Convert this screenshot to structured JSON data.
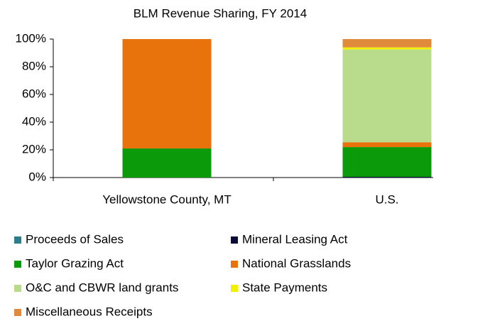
{
  "chart_data": {
    "type": "stacked_bar",
    "title": "BLM Revenue Sharing, FY 2014",
    "categories": [
      "Yellowstone County, MT",
      "U.S."
    ],
    "series": [
      {
        "name": "Proceeds of Sales",
        "color": "#2e7d8c",
        "values": [
          0,
          0
        ]
      },
      {
        "name": "Mineral Leasing Act",
        "color": "#0a0a3c",
        "values": [
          0,
          0.5
        ]
      },
      {
        "name": "Taylor Grazing Act",
        "color": "#0a9a0a",
        "values": [
          21,
          21.5
        ]
      },
      {
        "name": "National Grasslands",
        "color": "#e8720c",
        "values": [
          79,
          3.5
        ]
      },
      {
        "name": "O&C and CBWR land grants",
        "color": "#b8dc8c",
        "values": [
          0,
          67
        ]
      },
      {
        "name": "State Payments",
        "color": "#f0f000",
        "values": [
          0,
          1.5
        ]
      },
      {
        "name": "Miscellaneous Receipts",
        "color": "#e08a3c",
        "values": [
          0,
          6
        ]
      }
    ],
    "ylim": [
      0,
      100
    ],
    "yticks": [
      {
        "value": 0,
        "label": "0%"
      },
      {
        "value": 20,
        "label": "20%"
      },
      {
        "value": 40,
        "label": "40%"
      },
      {
        "value": 60,
        "label": "60%"
      },
      {
        "value": 80,
        "label": "80%"
      },
      {
        "value": 100,
        "label": "100%"
      }
    ],
    "legend": "bottom"
  }
}
